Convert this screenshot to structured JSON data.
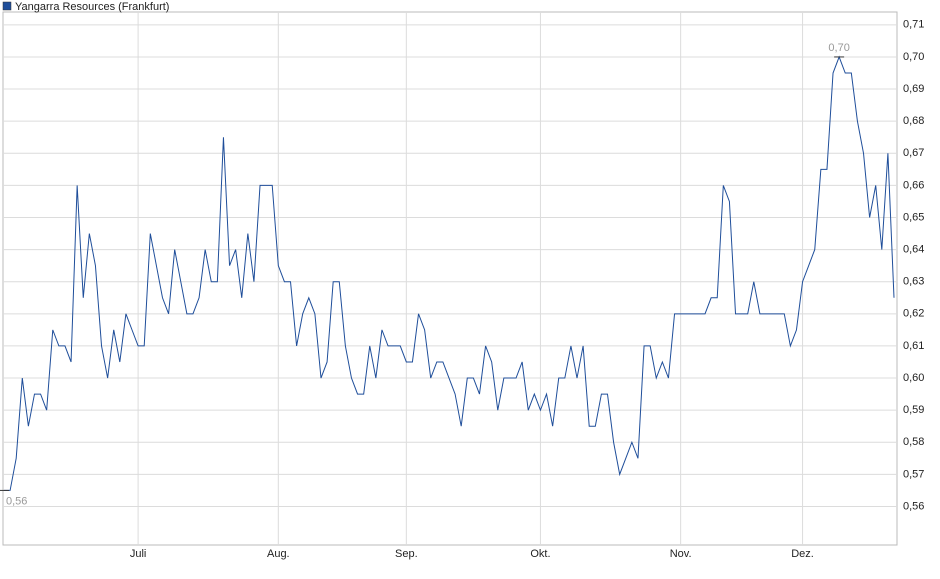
{
  "chart_data": {
    "type": "line",
    "title": "Yangarra Resources (Frankfurt)",
    "categories": [
      null,
      null,
      null,
      null,
      null,
      null,
      null,
      null,
      null,
      null,
      null,
      null,
      null,
      null,
      null,
      null,
      null,
      null,
      null,
      null,
      null,
      null,
      "Juli",
      null,
      null,
      null,
      null,
      null,
      null,
      null,
      null,
      null,
      null,
      null,
      null,
      null,
      null,
      null,
      null,
      null,
      null,
      null,
      null,
      null,
      null,
      "Aug.",
      null,
      null,
      null,
      null,
      null,
      null,
      null,
      null,
      null,
      null,
      null,
      null,
      null,
      null,
      null,
      null,
      null,
      null,
      null,
      null,
      "Sep.",
      null,
      null,
      null,
      null,
      null,
      null,
      null,
      null,
      null,
      null,
      null,
      null,
      null,
      null,
      null,
      null,
      null,
      null,
      null,
      null,
      null,
      "Okt.",
      null,
      null,
      null,
      null,
      null,
      null,
      null,
      null,
      null,
      null,
      null,
      null,
      null,
      null,
      null,
      null,
      null,
      null,
      null,
      null,
      null,
      null,
      "Nov.",
      null,
      null,
      null,
      null,
      null,
      null,
      null,
      null,
      null,
      null,
      null,
      null,
      null,
      null,
      null,
      null,
      null,
      null,
      null,
      "Dez.",
      null,
      null,
      null,
      null,
      null,
      null,
      null,
      null,
      null,
      null,
      null,
      null,
      null,
      null,
      null
    ],
    "series": [
      {
        "name": "Yangarra Resources (Frankfurt)",
        "color": "#1f4e9a",
        "values": [
          0.565,
          0.565,
          0.575,
          0.6,
          0.585,
          0.595,
          0.595,
          0.59,
          0.615,
          0.61,
          0.61,
          0.605,
          0.66,
          0.625,
          0.645,
          0.635,
          0.61,
          0.6,
          0.615,
          0.605,
          0.62,
          0.615,
          0.61,
          0.61,
          0.645,
          0.635,
          0.625,
          0.62,
          0.64,
          0.63,
          0.62,
          0.62,
          0.625,
          0.64,
          0.63,
          0.63,
          0.675,
          0.635,
          0.64,
          0.625,
          0.645,
          0.63,
          0.66,
          0.66,
          0.66,
          0.635,
          0.63,
          0.63,
          0.61,
          0.62,
          0.625,
          0.62,
          0.6,
          0.605,
          0.63,
          0.63,
          0.61,
          0.6,
          0.595,
          0.595,
          0.61,
          0.6,
          0.615,
          0.61,
          0.61,
          0.61,
          0.605,
          0.605,
          0.62,
          0.615,
          0.6,
          0.605,
          0.605,
          0.6,
          0.595,
          0.585,
          0.6,
          0.6,
          0.595,
          0.61,
          0.605,
          0.59,
          0.6,
          0.6,
          0.6,
          0.605,
          0.59,
          0.595,
          0.59,
          0.595,
          0.585,
          0.6,
          0.6,
          0.61,
          0.6,
          0.61,
          0.585,
          0.585,
          0.595,
          0.595,
          0.58,
          0.57,
          0.575,
          0.58,
          0.575,
          0.61,
          0.61,
          0.6,
          0.605,
          0.6,
          0.62,
          0.62,
          0.62,
          0.62,
          0.62,
          0.62,
          0.625,
          0.625,
          0.66,
          0.655,
          0.62,
          0.62,
          0.62,
          0.63,
          0.62,
          0.62,
          0.62,
          0.62,
          0.62,
          0.61,
          0.615,
          0.63,
          0.635,
          0.64,
          0.665,
          0.665,
          0.695,
          0.7,
          0.695,
          0.695,
          0.68,
          0.67,
          0.65,
          0.66,
          0.64,
          0.67,
          0.625
        ],
        "value_labels": [
          "0,56",
          null,
          null,
          null,
          null,
          null,
          null,
          null,
          null,
          null,
          null,
          null,
          null,
          null,
          null,
          null,
          null,
          null,
          null,
          null,
          null,
          null,
          null,
          null,
          null,
          null,
          null,
          null,
          null,
          null,
          null,
          null,
          null,
          null,
          null,
          null,
          null,
          null,
          null,
          null,
          null,
          null,
          null,
          null,
          null,
          null,
          null,
          null,
          null,
          null,
          null,
          null,
          null,
          null,
          null,
          null,
          null,
          null,
          null,
          null,
          null,
          null,
          null,
          null,
          null,
          null,
          null,
          null,
          null,
          null,
          null,
          null,
          null,
          null,
          null,
          null,
          null,
          null,
          null,
          null,
          null,
          null,
          null,
          null,
          null,
          null,
          null,
          null,
          null,
          null,
          null,
          null,
          null,
          null,
          null,
          null,
          null,
          null,
          null,
          null,
          null,
          null,
          null,
          null,
          null,
          null,
          null,
          null,
          null,
          null,
          null,
          null,
          null,
          null,
          null,
          null,
          null,
          null,
          null,
          null,
          null,
          null,
          null,
          null,
          null,
          null,
          null,
          null,
          null,
          null,
          null,
          null,
          null,
          null,
          null,
          null,
          null,
          "0,70",
          null,
          null,
          null,
          null,
          null,
          null,
          null,
          null,
          null
        ]
      }
    ],
    "ylim": [
      0.548,
      0.714
    ],
    "yticks": [
      {
        "value": 0.56,
        "label": "0,56"
      },
      {
        "value": 0.57,
        "label": "0,57"
      },
      {
        "value": 0.58,
        "label": "0,58"
      },
      {
        "value": 0.59,
        "label": "0,59"
      },
      {
        "value": 0.6,
        "label": "0,60"
      },
      {
        "value": 0.61,
        "label": "0,61"
      },
      {
        "value": 0.62,
        "label": "0,62"
      },
      {
        "value": 0.63,
        "label": "0,63"
      },
      {
        "value": 0.64,
        "label": "0,64"
      },
      {
        "value": 0.65,
        "label": "0,65"
      },
      {
        "value": 0.66,
        "label": "0,66"
      },
      {
        "value": 0.67,
        "label": "0,67"
      },
      {
        "value": 0.68,
        "label": "0,68"
      },
      {
        "value": 0.69,
        "label": "0,69"
      },
      {
        "value": 0.7,
        "label": "0,70"
      },
      {
        "value": 0.71,
        "label": "0,71"
      }
    ],
    "grid": true
  }
}
